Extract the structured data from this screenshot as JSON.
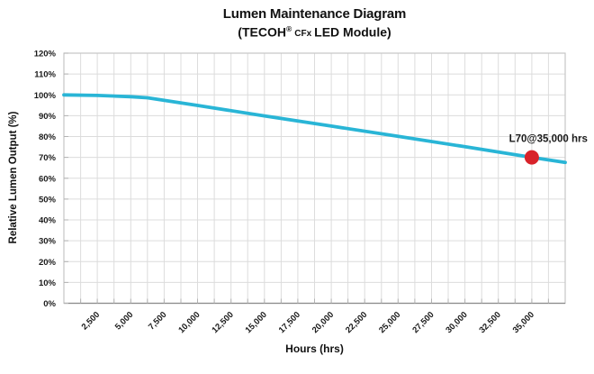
{
  "page": {
    "background": "#ffffff"
  },
  "chart_data": {
    "type": "line",
    "title": "Lumen Maintenance Diagram",
    "subtitle_text": "(TECOH® CFx LED Module)",
    "subtitle_parts": {
      "open": "(TECOH",
      "registered": "®",
      "variant": "CFx",
      "rest": "LED Module)"
    },
    "xlabel": "Hours (hrs)",
    "ylabel": "Relative Lumen Output (%)",
    "xlim": [
      0,
      37500
    ],
    "ylim": [
      0,
      120
    ],
    "x_minor_step": 1250,
    "grid": true,
    "legend": "none",
    "x_major_ticks": [
      {
        "value": 2500,
        "label": "2,500"
      },
      {
        "value": 5000,
        "label": "5,000"
      },
      {
        "value": 7500,
        "label": "7,500"
      },
      {
        "value": 10000,
        "label": "10,000"
      },
      {
        "value": 12500,
        "label": "12,500"
      },
      {
        "value": 15000,
        "label": "15,000"
      },
      {
        "value": 17500,
        "label": "17,500"
      },
      {
        "value": 20000,
        "label": "20,000"
      },
      {
        "value": 22500,
        "label": "22,500"
      },
      {
        "value": 25000,
        "label": "25,000"
      },
      {
        "value": 27500,
        "label": "27,500"
      },
      {
        "value": 30000,
        "label": "30,000"
      },
      {
        "value": 32500,
        "label": "32,500"
      },
      {
        "value": 35000,
        "label": "35,000"
      }
    ],
    "y_ticks": [
      {
        "value": 0,
        "label": "0%"
      },
      {
        "value": 10,
        "label": "10%"
      },
      {
        "value": 20,
        "label": "20%"
      },
      {
        "value": 30,
        "label": "30%"
      },
      {
        "value": 40,
        "label": "40%"
      },
      {
        "value": 50,
        "label": "50%"
      },
      {
        "value": 60,
        "label": "60%"
      },
      {
        "value": 70,
        "label": "70%"
      },
      {
        "value": 80,
        "label": "80%"
      },
      {
        "value": 90,
        "label": "90%"
      },
      {
        "value": 100,
        "label": "100%"
      },
      {
        "value": 110,
        "label": "110%"
      },
      {
        "value": 120,
        "label": "120%"
      }
    ],
    "series": [
      {
        "name": "Relative Lumen Output",
        "color": "#29b5d6",
        "points": [
          [
            0,
            100
          ],
          [
            2500,
            99.7
          ],
          [
            5000,
            99.1
          ],
          [
            6250,
            98.6
          ],
          [
            10000,
            94.9
          ],
          [
            15000,
            89.9
          ],
          [
            20000,
            85.0
          ],
          [
            25000,
            80.1
          ],
          [
            30000,
            75.1
          ],
          [
            35000,
            70.0
          ],
          [
            37500,
            67.6
          ]
        ]
      }
    ],
    "marker": {
      "x": 35000,
      "y": 70,
      "radius": 8,
      "color": "#d8232a",
      "label": "L70@35,000 hrs"
    },
    "colors": {
      "grid": "#dcdcdc",
      "frame": "#c6c6c6",
      "axis": "#8c8c8c",
      "tick": "#b3b3b3",
      "text": "#1a1a1a"
    }
  }
}
